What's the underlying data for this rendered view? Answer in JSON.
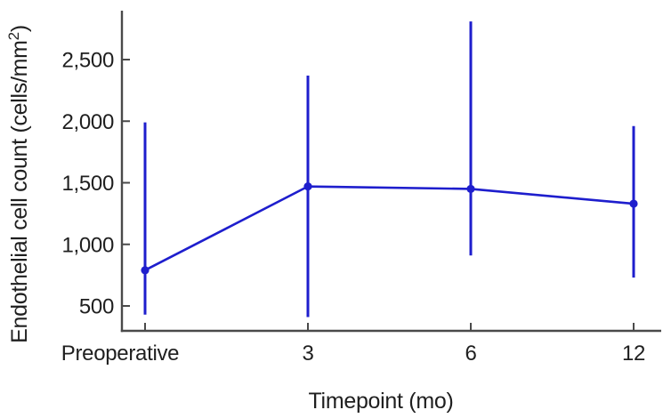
{
  "figure": {
    "background": "#ffffff"
  },
  "chart_data": {
    "type": "line",
    "title": "",
    "xlabel": "Timepoint (mo)",
    "ylabel": "Endothelial cell count (cells/mm²)",
    "ylabel_parts": {
      "prefix": "Endothelial cell count (cells/mm",
      "superscript": "2",
      "suffix": ")"
    },
    "categories": [
      "Preoperative",
      "3",
      "6",
      "12"
    ],
    "series": [
      {
        "name": "Endothelial cell count",
        "means": [
          790,
          1470,
          1450,
          1330
        ],
        "error_low": [
          430,
          410,
          910,
          730
        ],
        "error_high": [
          1990,
          2370,
          2810,
          1960
        ]
      }
    ],
    "y_ticks": {
      "values": [
        500,
        1000,
        1500,
        2000,
        2500
      ],
      "labels": [
        "500",
        "1,000",
        "1,500",
        "2,000",
        "2,500"
      ]
    },
    "ylim": [
      300,
      2900
    ],
    "grid": false,
    "legend": "none",
    "marker": "circle",
    "error_bar_caps": false,
    "colors": {
      "series": "#1e1ecd",
      "axis": "#4a4a4a",
      "text": "#1f1f1f",
      "background": "#ffffff"
    }
  }
}
